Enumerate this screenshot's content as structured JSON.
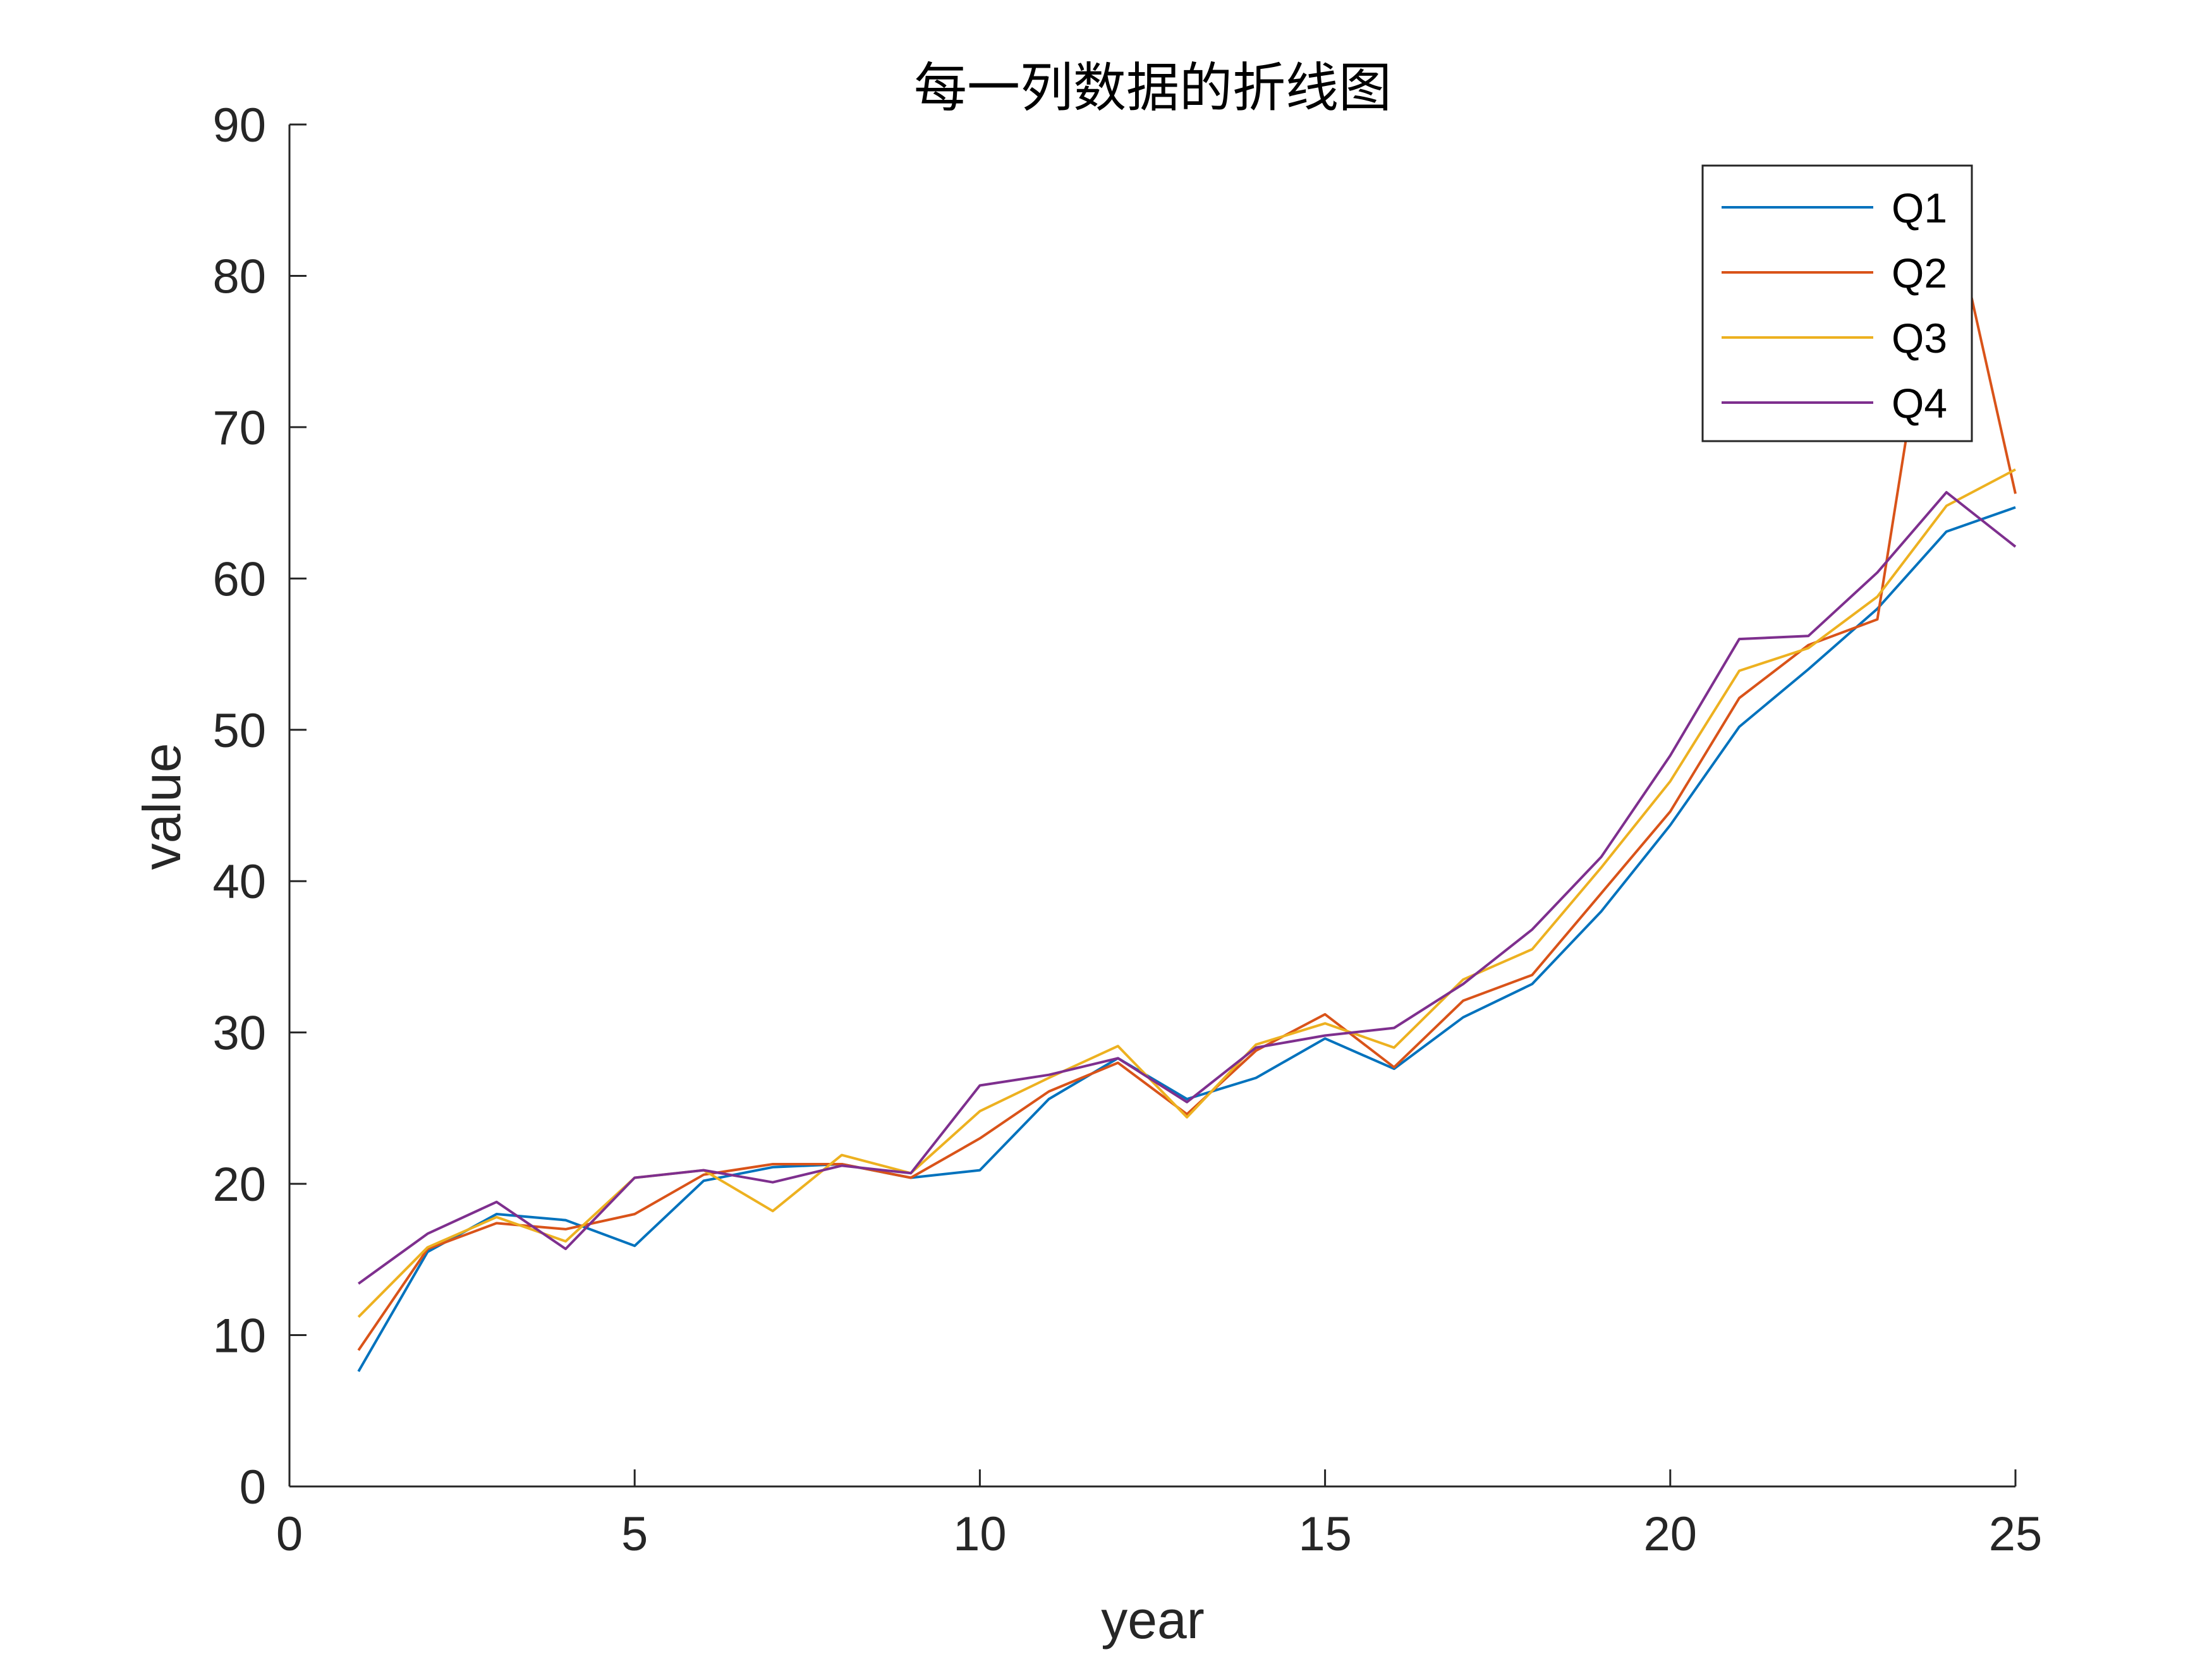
{
  "chart_data": {
    "type": "line",
    "title": "每一列数据的折线图",
    "xlabel": "year",
    "ylabel": "value",
    "xlim": [
      0,
      25
    ],
    "ylim": [
      0,
      90
    ],
    "xticks": [
      0,
      5,
      10,
      15,
      20,
      25
    ],
    "yticks": [
      0,
      10,
      20,
      30,
      40,
      50,
      60,
      70,
      80,
      90
    ],
    "grid": false,
    "legend_position": "top-right",
    "x": [
      1,
      2,
      3,
      4,
      5,
      6,
      7,
      8,
      9,
      10,
      11,
      12,
      13,
      14,
      15,
      16,
      17,
      18,
      19,
      20,
      21,
      22,
      23,
      24,
      25
    ],
    "series": [
      {
        "name": "Q1",
        "color": "#0072BD",
        "values": [
          7.6,
          15.5,
          18.0,
          17.6,
          15.9,
          20.2,
          21.1,
          21.3,
          20.4,
          20.9,
          25.6,
          28.3,
          25.6,
          27.0,
          29.6,
          27.6,
          31.0,
          33.2,
          38.0,
          43.7,
          50.2,
          54.0,
          58.0,
          63.1,
          64.7
        ]
      },
      {
        "name": "Q2",
        "color": "#D95319",
        "values": [
          9.0,
          15.7,
          17.4,
          17.0,
          18.0,
          20.6,
          21.3,
          21.3,
          20.4,
          23.0,
          26.1,
          28.0,
          24.6,
          28.8,
          31.2,
          27.7,
          32.1,
          33.8,
          39.2,
          44.6,
          52.1,
          55.6,
          57.3,
          86.0,
          65.6
        ]
      },
      {
        "name": "Q3",
        "color": "#EDB120",
        "values": [
          11.2,
          15.8,
          17.8,
          16.2,
          20.4,
          20.9,
          18.2,
          21.9,
          20.7,
          24.8,
          27.0,
          29.1,
          24.4,
          29.2,
          30.6,
          29.0,
          33.5,
          35.5,
          40.9,
          46.6,
          53.9,
          55.4,
          58.8,
          64.8,
          67.2
        ]
      },
      {
        "name": "Q4",
        "color": "#7E2F8E",
        "values": [
          13.4,
          16.7,
          18.8,
          15.7,
          20.4,
          20.9,
          20.1,
          21.2,
          20.7,
          26.5,
          27.2,
          28.3,
          25.4,
          29.0,
          29.8,
          30.3,
          33.2,
          36.8,
          41.6,
          48.3,
          56.0,
          56.2,
          60.4,
          65.7,
          62.1
        ]
      }
    ]
  }
}
